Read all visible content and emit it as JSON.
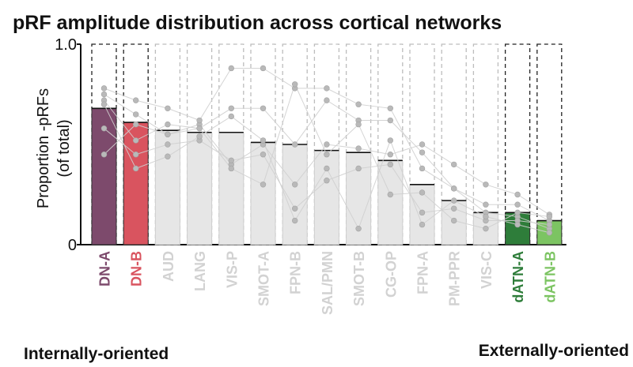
{
  "chart_data": {
    "type": "bar",
    "title": "pRF amplitude distribution across cortical networks",
    "ylabel_line1": "Proportion -pRFs",
    "ylabel_line2": "(of total)",
    "xlabel": "",
    "ylim": [
      0,
      1
    ],
    "yticks": [
      {
        "value": 0,
        "label": "0"
      },
      {
        "value": 1,
        "label": "1.0"
      }
    ],
    "categories": [
      "DN-A",
      "DN-B",
      "AUD",
      "LANG",
      "VIS-P",
      "SMOT-A",
      "FPN-B",
      "SAL/PMN",
      "SMOT-B",
      "CG-OP",
      "FPN-A",
      "PM-PPR",
      "VIS-C",
      "dATN-A",
      "dATN-B"
    ],
    "values": [
      0.68,
      0.61,
      0.57,
      0.56,
      0.56,
      0.51,
      0.5,
      0.47,
      0.46,
      0.42,
      0.3,
      0.22,
      0.16,
      0.16,
      0.12
    ],
    "highlighted": [
      "DN-A",
      "DN-B",
      "dATN-A",
      "dATN-B"
    ],
    "bar_colors": [
      "#7d4a6c",
      "#d9545f",
      "#e6e6e6",
      "#e6e6e6",
      "#e6e6e6",
      "#e6e6e6",
      "#e6e6e6",
      "#e6e6e6",
      "#e6e6e6",
      "#e6e6e6",
      "#e6e6e6",
      "#e6e6e6",
      "#e6e6e6",
      "#2e7d3a",
      "#7cc462"
    ],
    "label_colors": [
      "#7d4a6c",
      "#d9545f",
      "#d2d2d2",
      "#d2d2d2",
      "#d2d2d2",
      "#d2d2d2",
      "#d2d2d2",
      "#d2d2d2",
      "#d2d2d2",
      "#d2d2d2",
      "#d2d2d2",
      "#d2d2d2",
      "#d2d2d2",
      "#2e7d3a",
      "#7cc462"
    ],
    "subjects": [
      [
        0.75,
        0.65,
        0.55,
        0.6,
        0.4,
        0.5,
        0.3,
        0.5,
        0.48,
        0.45,
        0.5,
        0.4,
        0.3,
        0.25,
        0.15
      ],
      [
        0.78,
        0.72,
        0.68,
        0.62,
        0.88,
        0.88,
        0.78,
        0.78,
        0.7,
        0.68,
        0.38,
        0.28,
        0.2,
        0.2,
        0.12
      ],
      [
        0.72,
        0.52,
        0.6,
        0.58,
        0.68,
        0.68,
        0.5,
        0.72,
        0.62,
        0.62,
        0.46,
        0.28,
        0.16,
        0.14,
        0.08
      ],
      [
        0.58,
        0.45,
        0.5,
        0.52,
        0.42,
        0.45,
        0.18,
        0.32,
        0.38,
        0.4,
        0.16,
        0.18,
        0.12,
        0.12,
        0.1
      ],
      [
        0.45,
        0.6,
        0.55,
        0.58,
        0.38,
        0.3,
        0.8,
        0.45,
        0.6,
        0.25,
        0.26,
        0.12,
        0.08,
        0.16,
        0.14
      ],
      [
        0.7,
        0.38,
        0.44,
        0.54,
        0.64,
        0.52,
        0.12,
        0.38,
        0.08,
        0.52,
        0.1,
        0.22,
        0.14,
        0.1,
        0.06
      ]
    ],
    "annotations": {
      "left": "Internally-oriented",
      "right": "Externally-oriented"
    }
  }
}
